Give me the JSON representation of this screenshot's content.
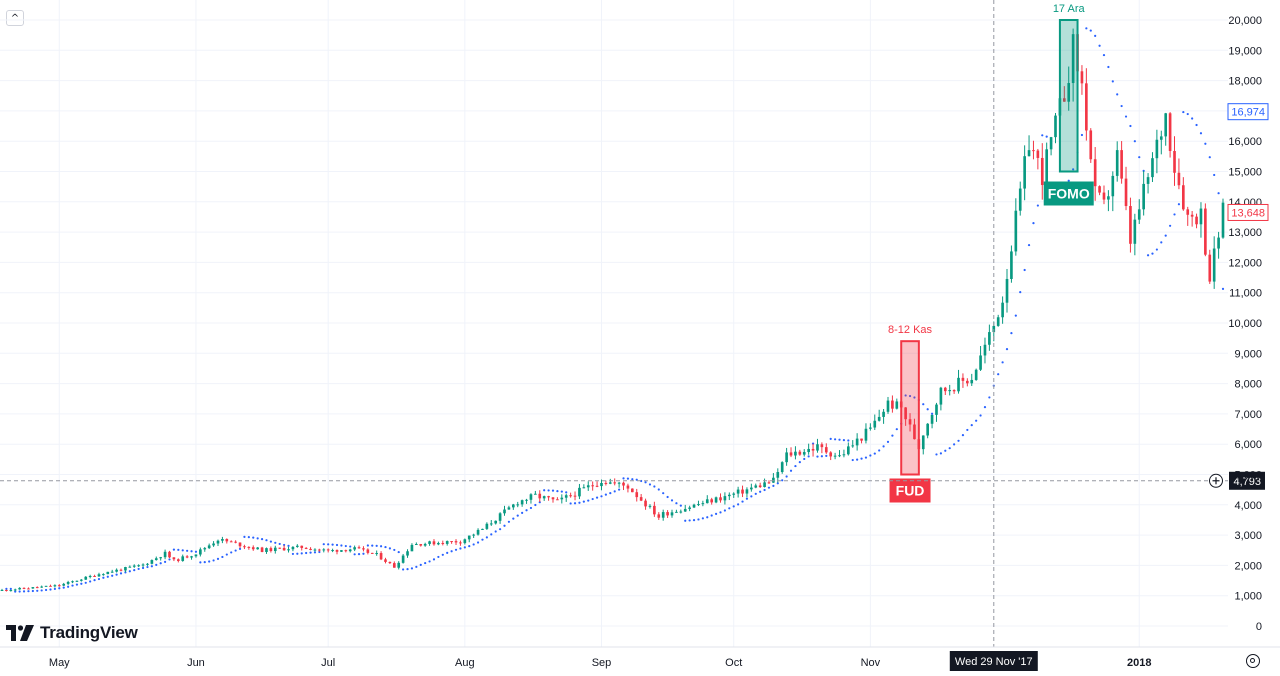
{
  "chart_data": {
    "type": "candlestick",
    "title": "",
    "y_scale": "linear",
    "ylim": [
      0,
      20000
    ],
    "y_ticks": [
      "20,000",
      "19,000",
      "18,000",
      "17,000",
      "16,000",
      "15,000",
      "14,000",
      "13,000",
      "12,000",
      "11,000",
      "10,000",
      "9,000",
      "8,000",
      "7,000",
      "6,000",
      "5,000",
      "4,000",
      "3,000",
      "2,000",
      "1,000",
      "0"
    ],
    "x_ticks": [
      {
        "label": "May",
        "date": "2017-05-01"
      },
      {
        "label": "Jun",
        "date": "2017-06-01"
      },
      {
        "label": "Jul",
        "date": "2017-07-01"
      },
      {
        "label": "Aug",
        "date": "2017-08-01"
      },
      {
        "label": "Sep",
        "date": "2017-09-01"
      },
      {
        "label": "Oct",
        "date": "2017-10-01"
      },
      {
        "label": "Nov",
        "date": "2017-11-01"
      },
      {
        "label": "2018",
        "date": "2018-01-01"
      }
    ],
    "x_range": [
      "2017-04-18",
      "2018-01-20"
    ],
    "crosshair": {
      "date_label": "Wed 29 Nov '17",
      "date": "2017-11-29",
      "price_label": "4,793",
      "price": 4793
    },
    "price_labels": [
      {
        "label": "16,974",
        "value": 16974,
        "color": "#2962ff"
      },
      {
        "label": "13,648",
        "value": 13648,
        "color": "#f23645"
      }
    ],
    "colors": {
      "up": "#089981",
      "down": "#f23645",
      "psar": "#2962ff",
      "grid": "#f0f3fa"
    },
    "key_points": [
      [
        "2017-04-18",
        1180
      ],
      [
        "2017-05-01",
        1340
      ],
      [
        "2017-05-10",
        1720
      ],
      [
        "2017-05-20",
        2020
      ],
      [
        "2017-05-25",
        2400
      ],
      [
        "2017-05-27",
        2150
      ],
      [
        "2017-06-01",
        2400
      ],
      [
        "2017-06-06",
        2860
      ],
      [
        "2017-06-12",
        2650
      ],
      [
        "2017-06-16",
        2500
      ],
      [
        "2017-06-25",
        2600
      ],
      [
        "2017-07-01",
        2480
      ],
      [
        "2017-07-07",
        2550
      ],
      [
        "2017-07-12",
        2350
      ],
      [
        "2017-07-16",
        1950
      ],
      [
        "2017-07-20",
        2700
      ],
      [
        "2017-07-31",
        2800
      ],
      [
        "2017-08-05",
        3200
      ],
      [
        "2017-08-13",
        4100
      ],
      [
        "2017-08-17",
        4300
      ],
      [
        "2017-08-22",
        4100
      ],
      [
        "2017-09-01",
        4800
      ],
      [
        "2017-09-07",
        4600
      ],
      [
        "2017-09-14",
        3600
      ],
      [
        "2017-09-15",
        3700
      ],
      [
        "2017-09-20",
        3900
      ],
      [
        "2017-10-01",
        4350
      ],
      [
        "2017-10-10",
        4800
      ],
      [
        "2017-10-13",
        5650
      ],
      [
        "2017-10-20",
        5900
      ],
      [
        "2017-10-25",
        5600
      ],
      [
        "2017-11-01",
        6500
      ],
      [
        "2017-11-05",
        7350
      ],
      [
        "2017-11-08",
        7200
      ],
      [
        "2017-11-12",
        5900
      ],
      [
        "2017-11-13",
        6400
      ],
      [
        "2017-11-17",
        7750
      ],
      [
        "2017-11-24",
        8200
      ],
      [
        "2017-11-29",
        9900
      ],
      [
        "2017-12-01",
        10800
      ],
      [
        "2017-12-07",
        16000
      ],
      [
        "2017-12-10",
        14900
      ],
      [
        "2017-12-13",
        16500
      ],
      [
        "2017-12-15",
        17600
      ],
      [
        "2017-12-17",
        19100
      ],
      [
        "2017-12-19",
        17800
      ],
      [
        "2017-12-22",
        14200
      ],
      [
        "2017-12-24",
        13800
      ],
      [
        "2017-12-27",
        15500
      ],
      [
        "2017-12-30",
        12700
      ],
      [
        "2018-01-03",
        14800
      ],
      [
        "2018-01-07",
        16900
      ],
      [
        "2018-01-09",
        15200
      ],
      [
        "2018-01-12",
        13500
      ],
      [
        "2018-01-15",
        13600
      ],
      [
        "2018-01-17",
        11500
      ],
      [
        "2018-01-20",
        13650
      ]
    ],
    "annotations": [
      {
        "kind": "box",
        "label": "8-12 Kas",
        "tag": "FUD",
        "start": "2017-11-08",
        "end": "2017-11-12",
        "low": 5000,
        "high": 9400,
        "color": "#f23645"
      },
      {
        "kind": "box",
        "label": "17 Ara",
        "tag": "FOMO",
        "start": "2017-12-14",
        "end": "2017-12-18",
        "low": 15000,
        "high": 20000,
        "color": "#089981"
      }
    ]
  },
  "ui": {
    "brand": "TradingView",
    "collapse_glyph": "^",
    "icons": [
      "collapse-chevron-icon",
      "tradingview-logo-icon",
      "settings-icon"
    ]
  }
}
